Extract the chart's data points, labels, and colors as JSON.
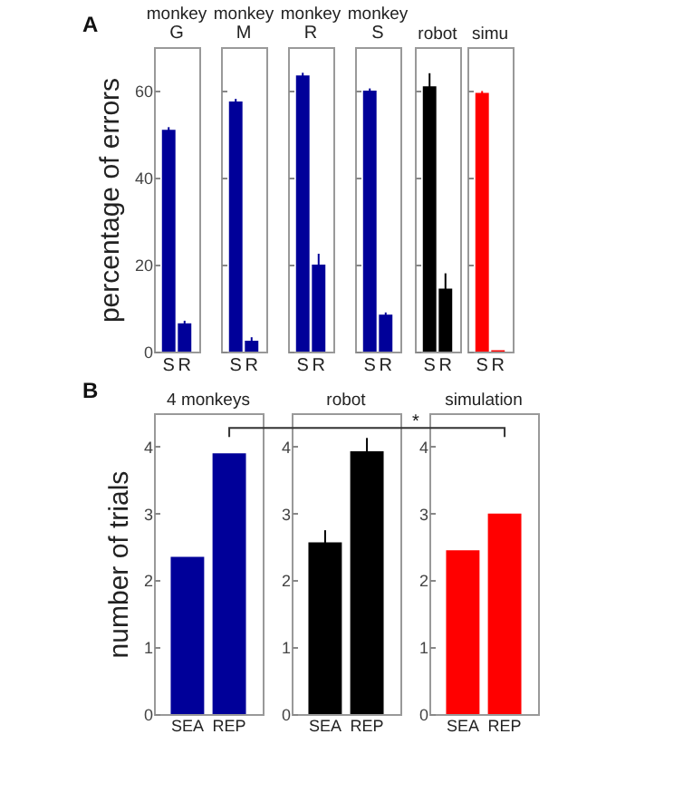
{
  "chart_data": [
    {
      "type": "bar",
      "title": "monkey",
      "subtitle": "G",
      "ylabel": "percentage of errors",
      "annotations": [
        "A"
      ],
      "categories": [
        "S",
        "R"
      ],
      "values": [
        51,
        6.5
      ],
      "errors": [
        0.6,
        0.6
      ],
      "color": "#000099",
      "ylim": [
        0,
        70
      ],
      "yticks": [
        0,
        20,
        40,
        60
      ]
    },
    {
      "type": "bar",
      "title": "monkey",
      "subtitle": "M",
      "categories": [
        "S",
        "R"
      ],
      "values": [
        57.5,
        2.5
      ],
      "errors": [
        0.6,
        0.8
      ],
      "color": "#000099",
      "ylim": [
        0,
        70
      ],
      "yticks": [
        0,
        20,
        40,
        60
      ],
      "tick_labels": "x"
    },
    {
      "type": "bar",
      "title": "monkey",
      "subtitle": "R",
      "categories": [
        "S",
        "R"
      ],
      "values": [
        63.5,
        20
      ],
      "errors": [
        0.6,
        2.5
      ],
      "color": "#000099",
      "ylim": [
        0,
        70
      ],
      "yticks": [
        0,
        20,
        40,
        60
      ],
      "tick_labels": "x"
    },
    {
      "type": "bar",
      "title": "monkey",
      "subtitle": "S",
      "categories": [
        "S",
        "R"
      ],
      "values": [
        60,
        8.5
      ],
      "errors": [
        0.5,
        0.5
      ],
      "color": "#000099",
      "ylim": [
        0,
        70
      ],
      "yticks": [
        0,
        20,
        40,
        60
      ],
      "tick_labels": "x"
    },
    {
      "type": "bar",
      "title": "robot",
      "categories": [
        "S",
        "R"
      ],
      "values": [
        61,
        14.5
      ],
      "errors": [
        3,
        3.5
      ],
      "color": "#000000",
      "ylim": [
        0,
        70
      ],
      "yticks": [
        0,
        20,
        40,
        60
      ],
      "tick_labels": "x"
    },
    {
      "type": "bar",
      "title": "simu",
      "categories": [
        "S",
        "R"
      ],
      "values": [
        59.5,
        0.3
      ],
      "errors": [
        0.4,
        null
      ],
      "color": "#ff0000",
      "ylim": [
        0,
        70
      ],
      "yticks": [
        0,
        20,
        40,
        60
      ],
      "tick_labels": "x"
    },
    {
      "type": "bar",
      "title": "4 monkeys",
      "ylabel": "number of trials",
      "annotations": [
        "B"
      ],
      "categories": [
        "SEA",
        "REP"
      ],
      "values": [
        2.35,
        3.9
      ],
      "color": "#000099",
      "ylim": [
        0,
        4.5
      ],
      "yticks": [
        0,
        1,
        2,
        3,
        4
      ]
    },
    {
      "type": "bar",
      "title": "robot",
      "categories": [
        "SEA",
        "REP"
      ],
      "values": [
        2.57,
        3.93
      ],
      "errors": [
        0.18,
        0.2
      ],
      "color": "#000000",
      "ylim": [
        0,
        4.5
      ],
      "yticks": [
        0,
        1,
        2,
        3,
        4
      ]
    },
    {
      "type": "bar",
      "title": "simulation",
      "annotations": [
        "*"
      ],
      "categories": [
        "SEA",
        "REP"
      ],
      "values": [
        2.45,
        3.0
      ],
      "color": "#ff0000",
      "ylim": [
        0,
        4.5
      ],
      "yticks": [
        0,
        1,
        2,
        3,
        4
      ]
    }
  ]
}
